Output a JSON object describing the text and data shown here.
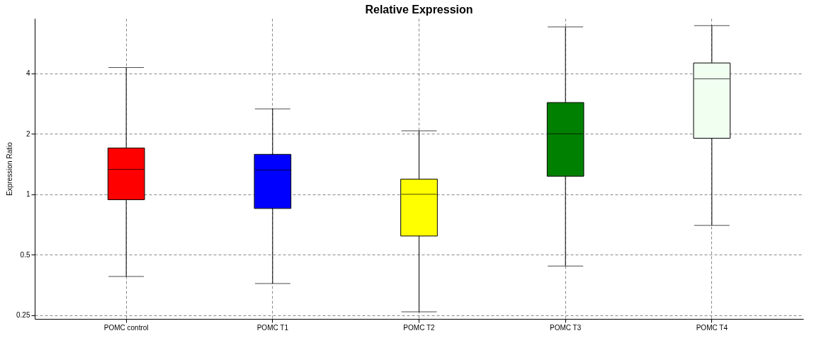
{
  "chart_data": {
    "type": "box",
    "title": "Relative Expression",
    "ylabel": "Expression Ratio",
    "categories": [
      "POMC control",
      "POMC T1",
      "POMC T2",
      "POMC T3",
      "POMC T4"
    ],
    "boxes": [
      {
        "low": 0.39,
        "q1": 0.94,
        "median": 1.33,
        "q3": 1.7,
        "high": 4.27
      },
      {
        "low": 0.36,
        "q1": 0.85,
        "median": 1.32,
        "q3": 1.58,
        "high": 2.66
      },
      {
        "low": 0.26,
        "q1": 0.62,
        "median": 1.0,
        "q3": 1.19,
        "high": 2.07
      },
      {
        "low": 0.44,
        "q1": 1.23,
        "median": 2.0,
        "q3": 2.86,
        "high": 6.8
      },
      {
        "low": 0.7,
        "q1": 1.9,
        "median": 3.75,
        "q3": 4.5,
        "high": 6.9
      }
    ],
    "colors": [
      "#ff0000",
      "#0000ff",
      "#ffff00",
      "#008000",
      "#f0fff0"
    ],
    "log": true,
    "ylim": [
      0.24,
      7.5
    ],
    "yticks": [
      0.25,
      0.5,
      1,
      2,
      4
    ],
    "grid": true
  }
}
